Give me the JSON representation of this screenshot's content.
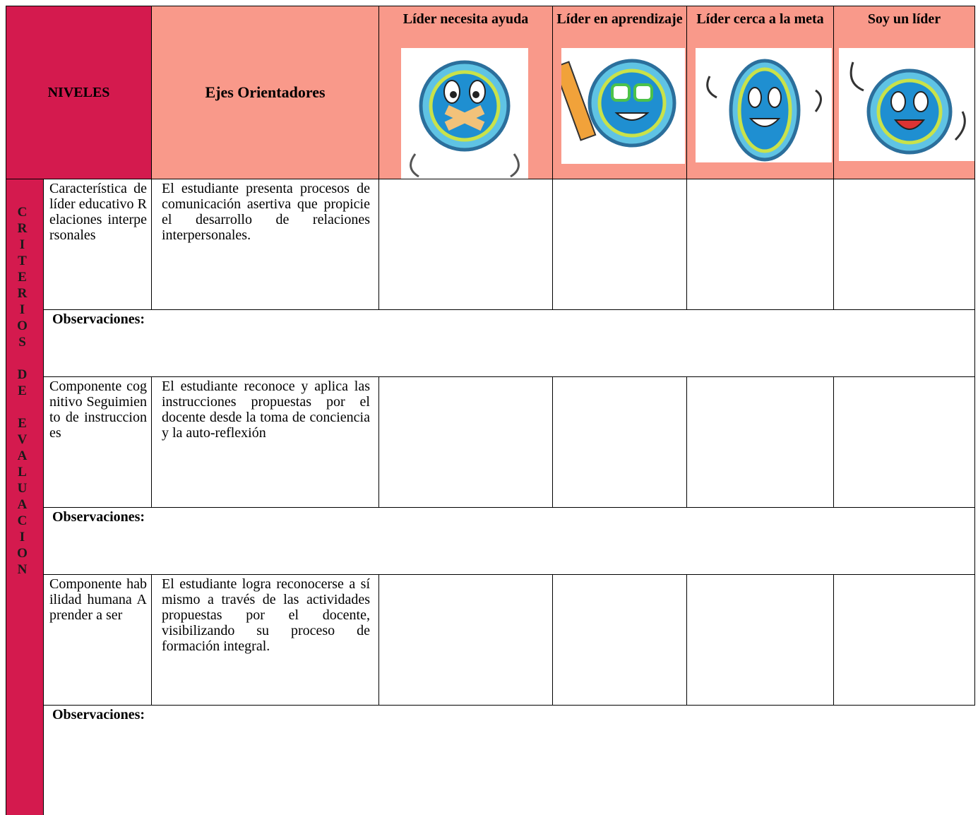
{
  "header": {
    "niveles": "NIVELES",
    "ejes": "Ejes Orientadores",
    "levels": [
      "Líder necesita ayuda",
      "Líder en aprendizaje",
      "Líder cerca a la meta",
      "Soy un líder"
    ]
  },
  "side_label": "CRITERIOS DE EVALUACION",
  "rows": [
    {
      "criterion": "Característica de líder educativo Relaciones interpersonales",
      "description": "El estudiante presenta procesos de comunicación asertiva que propicie el desarrollo de relaciones interpersonales.",
      "observations": "Observaciones:"
    },
    {
      "criterion": "Componente cognitivo Seguimiento de instrucciones",
      "description": "El estudiante reconoce y aplica las instrucciones propuestas por el docente desde la toma de conciencia y la auto-reflexión",
      "observations": "Observaciones:"
    },
    {
      "criterion": "Componente habilidad humana Aprender a ser",
      "description": "El estudiante logra reconocerse a sí mismo a través de las actividades propuestas por el docente, visibilizando su proceso de formación integral.",
      "observations": "Observaciones:"
    }
  ]
}
